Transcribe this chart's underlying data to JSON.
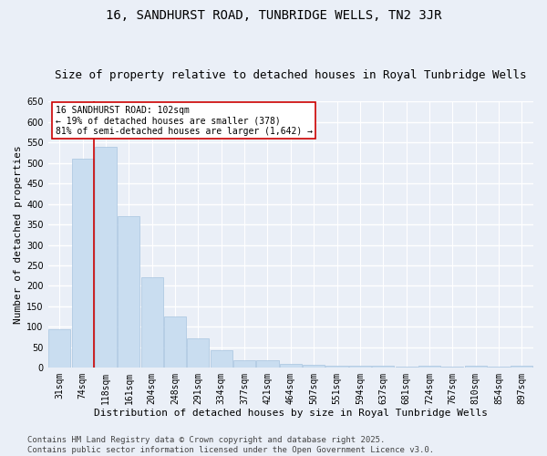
{
  "title1": "16, SANDHURST ROAD, TUNBRIDGE WELLS, TN2 3JR",
  "title2": "Size of property relative to detached houses in Royal Tunbridge Wells",
  "xlabel": "Distribution of detached houses by size in Royal Tunbridge Wells",
  "ylabel": "Number of detached properties",
  "bar_color": "#c9ddf0",
  "bar_edge_color": "#a8c4e0",
  "categories": [
    "31sqm",
    "74sqm",
    "118sqm",
    "161sqm",
    "204sqm",
    "248sqm",
    "291sqm",
    "334sqm",
    "377sqm",
    "421sqm",
    "464sqm",
    "507sqm",
    "551sqm",
    "594sqm",
    "637sqm",
    "681sqm",
    "724sqm",
    "767sqm",
    "810sqm",
    "854sqm",
    "897sqm"
  ],
  "bar_values": [
    95,
    510,
    540,
    370,
    220,
    125,
    72,
    43,
    18,
    18,
    10,
    7,
    4,
    4,
    4,
    3,
    4,
    2,
    4,
    3,
    4
  ],
  "vline_x": 1.5,
  "annotation_box_text": "16 SANDHURST ROAD: 102sqm\n← 19% of detached houses are smaller (378)\n81% of semi-detached houses are larger (1,642) →",
  "box_color": "#ffffff",
  "box_edge_color": "#cc0000",
  "vline_color": "#cc0000",
  "ylim": [
    0,
    650
  ],
  "footer": "Contains HM Land Registry data © Crown copyright and database right 2025.\nContains public sector information licensed under the Open Government Licence v3.0.",
  "bg_color": "#eaeff7",
  "plot_bg_color": "#eaeff7",
  "grid_color": "#ffffff",
  "title1_fontsize": 10,
  "title2_fontsize": 9,
  "xlabel_fontsize": 8,
  "ylabel_fontsize": 8,
  "tick_fontsize": 7,
  "annot_fontsize": 7,
  "footer_fontsize": 6.5
}
